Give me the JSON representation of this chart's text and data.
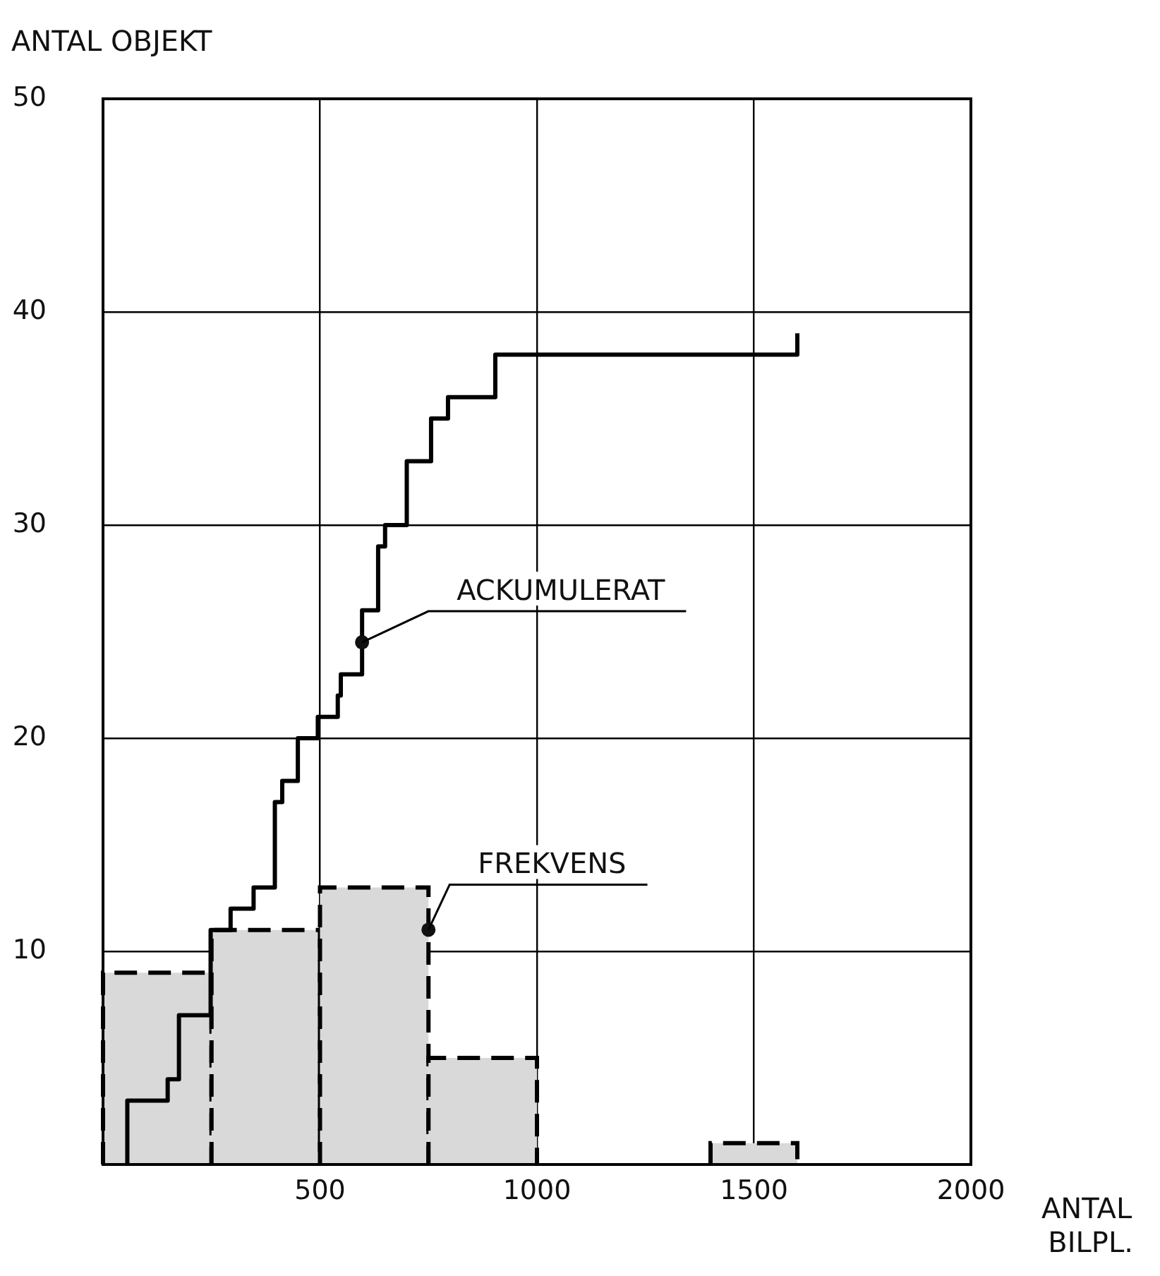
{
  "chart_data": {
    "type": "histogram",
    "xlabel": "ANTAL BILPL.",
    "ylabel": "ANTAL OBJEKT",
    "xlim": [
      0,
      2000
    ],
    "xticks": [
      500,
      1000,
      1500,
      2000
    ],
    "ylim": [
      0,
      50
    ],
    "yticks": [
      10,
      20,
      30,
      40,
      50
    ],
    "grid": true,
    "series": [
      {
        "type": "histogram",
        "name": "FREKVENS",
        "color": "#d9d9d9",
        "line_style": "dashed",
        "bins": [
          0,
          250,
          500,
          750,
          1000,
          1400,
          1600
        ],
        "values": [
          9,
          11,
          13,
          5,
          0,
          1
        ]
      },
      {
        "type": "step",
        "name": "ACKUMULERAT",
        "color": "#000000",
        "line_style": "solid",
        "x": [
          56,
          56,
          149,
          175,
          248,
          294,
          347,
          396,
          413,
          449,
          495,
          541,
          548,
          597,
          634,
          650,
          700,
          756,
          795,
          904,
          1600,
          1600
        ],
        "values": [
          0,
          3,
          4,
          7,
          11,
          12,
          13,
          17,
          18,
          20,
          21,
          22,
          23,
          26,
          29,
          30,
          33,
          35,
          36,
          38,
          38,
          39
        ]
      }
    ]
  }
}
